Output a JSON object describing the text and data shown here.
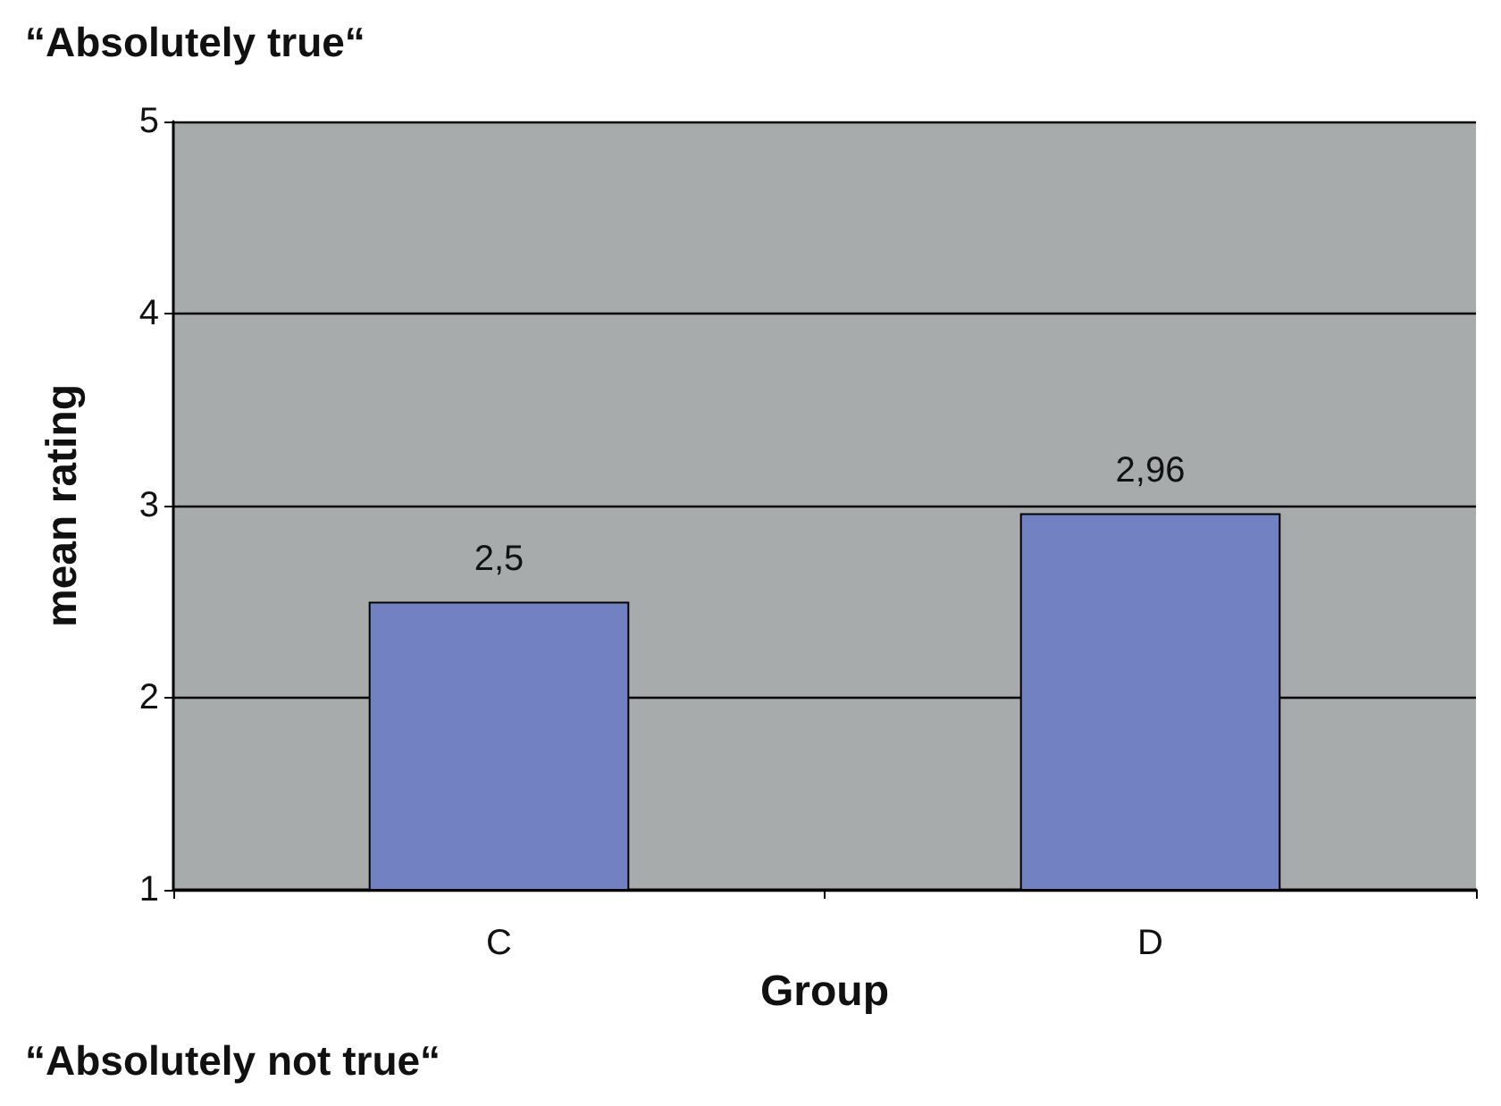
{
  "chart_data": {
    "type": "bar",
    "categories": [
      "C",
      "D"
    ],
    "series": [
      {
        "color": "#7281c2",
        "values": [
          2.5,
          2.96
        ],
        "value_labels": [
          "2,5",
          "2,96"
        ]
      }
    ],
    "xlabel": "Group",
    "ylabel": "mean rating",
    "ylim": [
      1,
      5
    ],
    "yticks": [
      1,
      2,
      3,
      4,
      5
    ],
    "grid": "y",
    "annotations": [
      "“Absolutely true“",
      "“Absolutely not true“"
    ]
  }
}
